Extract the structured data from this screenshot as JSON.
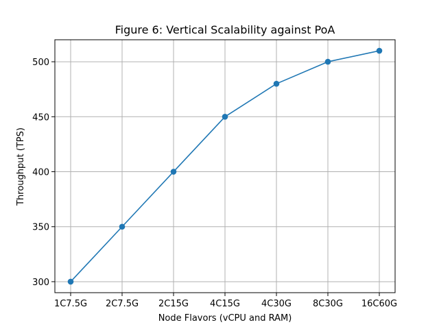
{
  "chart_data": {
    "type": "line",
    "title": "Figure 6: Vertical Scalability against PoA",
    "xlabel": "Node Flavors (vCPU and RAM)",
    "ylabel": "Throughput (TPS)",
    "categories": [
      "1C7.5G",
      "2C7.5G",
      "2C15G",
      "4C15G",
      "4C30G",
      "8C30G",
      "16C60G"
    ],
    "series": [
      {
        "values": [
          300,
          350,
          400,
          450,
          480,
          500,
          510
        ]
      }
    ],
    "ylim": [
      290,
      520
    ],
    "yticks": [
      300,
      350,
      400,
      450,
      500
    ],
    "grid": true,
    "line_color": "#1f77b4",
    "grid_color": "#b0b0b0"
  }
}
